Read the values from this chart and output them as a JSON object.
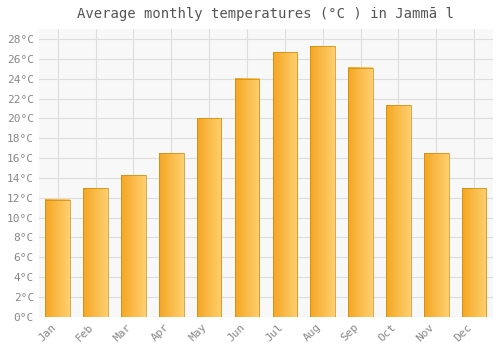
{
  "title": "Average monthly temperatures (°C ) in Jammā l",
  "months": [
    "Jan",
    "Feb",
    "Mar",
    "Apr",
    "May",
    "Jun",
    "Jul",
    "Aug",
    "Sep",
    "Oct",
    "Nov",
    "Dec"
  ],
  "values": [
    11.8,
    13.0,
    14.3,
    16.5,
    20.0,
    24.0,
    26.7,
    27.3,
    25.1,
    21.3,
    16.5,
    13.0
  ],
  "bar_color_left": "#F5A623",
  "bar_color_right": "#FFD070",
  "background_color": "#FFFFFF",
  "grid_color": "#DDDDDD",
  "plot_bg_color": "#F8F8F8",
  "ylim": [
    0,
    29
  ],
  "title_fontsize": 10,
  "tick_fontsize": 8,
  "font_family": "monospace"
}
